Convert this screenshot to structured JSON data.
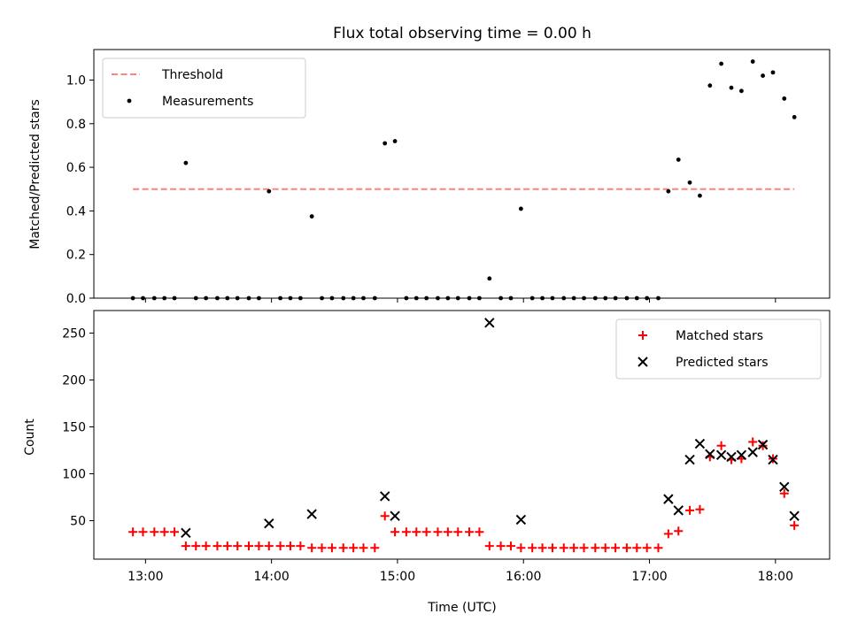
{
  "colors": {
    "threshold": "#ff8080",
    "measurement": "#000000",
    "matched": "#ff0000",
    "predicted": "#000000",
    "axes": "#000000"
  },
  "chart_data": [
    {
      "type": "scatter",
      "title": "Flux total observing time = 0.00 h",
      "xlabel": "",
      "ylabel": "Matched/Predicted stars",
      "xlim": [
        12.59,
        18.43
      ],
      "ylim": [
        0,
        1.14
      ],
      "yticks": [
        0.0,
        0.2,
        0.4,
        0.6,
        0.8,
        1.0
      ],
      "ytick_labels": [
        "0.0",
        "0.2",
        "0.4",
        "0.6",
        "0.8",
        "1.0"
      ],
      "xticks": [
        13,
        14,
        15,
        16,
        17,
        18
      ],
      "xtick_labels": [],
      "grid": false,
      "legend": {
        "position": "upper left",
        "entries": [
          "Threshold",
          "Measurements"
        ]
      },
      "series": [
        {
          "name": "Threshold",
          "style": "dashed-line",
          "x": [
            12.9,
            18.15
          ],
          "y": [
            0.5,
            0.5
          ]
        },
        {
          "name": "Measurements",
          "style": "dot",
          "points": [
            [
              12.9,
              0
            ],
            [
              12.98,
              0
            ],
            [
              13.07,
              0
            ],
            [
              13.15,
              0
            ],
            [
              13.23,
              0
            ],
            [
              13.32,
              0.62
            ],
            [
              13.4,
              0
            ],
            [
              13.48,
              0
            ],
            [
              13.57,
              0
            ],
            [
              13.65,
              0
            ],
            [
              13.73,
              0
            ],
            [
              13.82,
              0
            ],
            [
              13.9,
              0
            ],
            [
              13.98,
              0.49
            ],
            [
              14.07,
              0
            ],
            [
              14.15,
              0
            ],
            [
              14.23,
              0
            ],
            [
              14.32,
              0.375
            ],
            [
              14.4,
              0
            ],
            [
              14.48,
              0
            ],
            [
              14.57,
              0
            ],
            [
              14.65,
              0
            ],
            [
              14.73,
              0
            ],
            [
              14.82,
              0
            ],
            [
              14.9,
              0.71
            ],
            [
              14.98,
              0.72
            ],
            [
              15.07,
              0
            ],
            [
              15.15,
              0
            ],
            [
              15.23,
              0
            ],
            [
              15.32,
              0
            ],
            [
              15.4,
              0
            ],
            [
              15.48,
              0
            ],
            [
              15.57,
              0
            ],
            [
              15.65,
              0
            ],
            [
              15.73,
              0.09
            ],
            [
              15.82,
              0
            ],
            [
              15.9,
              0
            ],
            [
              15.98,
              0.41
            ],
            [
              16.07,
              0
            ],
            [
              16.15,
              0
            ],
            [
              16.23,
              0
            ],
            [
              16.32,
              0
            ],
            [
              16.4,
              0
            ],
            [
              16.48,
              0
            ],
            [
              16.57,
              0
            ],
            [
              16.65,
              0
            ],
            [
              16.73,
              0
            ],
            [
              16.82,
              0
            ],
            [
              16.9,
              0
            ],
            [
              16.98,
              0
            ],
            [
              17.07,
              0
            ],
            [
              17.15,
              0.49
            ],
            [
              17.23,
              0.635
            ],
            [
              17.32,
              0.53
            ],
            [
              17.4,
              0.47
            ],
            [
              17.48,
              0.975
            ],
            [
              17.57,
              1.075
            ],
            [
              17.65,
              0.965
            ],
            [
              17.73,
              0.95
            ],
            [
              17.82,
              1.085
            ],
            [
              17.9,
              1.02
            ],
            [
              17.98,
              1.035
            ],
            [
              18.07,
              0.915
            ],
            [
              18.15,
              0.83
            ]
          ]
        }
      ]
    },
    {
      "type": "scatter",
      "title": "",
      "xlabel": "Time (UTC)",
      "ylabel": "Count",
      "xlim": [
        12.59,
        18.43
      ],
      "ylim": [
        9,
        274
      ],
      "yticks": [
        50,
        100,
        150,
        200,
        250
      ],
      "ytick_labels": [
        "50",
        "100",
        "150",
        "200",
        "250"
      ],
      "xticks": [
        13,
        14,
        15,
        16,
        17,
        18
      ],
      "xtick_labels": [
        "13:00",
        "14:00",
        "15:00",
        "16:00",
        "17:00",
        "18:00"
      ],
      "grid": false,
      "legend": {
        "position": "upper right",
        "entries": [
          "Matched stars",
          "Predicted stars"
        ]
      },
      "series": [
        {
          "name": "Matched stars",
          "style": "plus",
          "points": [
            [
              12.9,
              38
            ],
            [
              12.98,
              38
            ],
            [
              13.07,
              38
            ],
            [
              13.15,
              38
            ],
            [
              13.23,
              38
            ],
            [
              13.32,
              23
            ],
            [
              13.4,
              23
            ],
            [
              13.48,
              23
            ],
            [
              13.57,
              23
            ],
            [
              13.65,
              23
            ],
            [
              13.73,
              23
            ],
            [
              13.82,
              23
            ],
            [
              13.9,
              23
            ],
            [
              13.98,
              23
            ],
            [
              14.07,
              23
            ],
            [
              14.15,
              23
            ],
            [
              14.23,
              23
            ],
            [
              14.32,
              21
            ],
            [
              14.4,
              21
            ],
            [
              14.48,
              21
            ],
            [
              14.57,
              21
            ],
            [
              14.65,
              21
            ],
            [
              14.73,
              21
            ],
            [
              14.82,
              21
            ],
            [
              14.9,
              55
            ],
            [
              14.98,
              38
            ],
            [
              15.07,
              38
            ],
            [
              15.15,
              38
            ],
            [
              15.23,
              38
            ],
            [
              15.32,
              38
            ],
            [
              15.4,
              38
            ],
            [
              15.48,
              38
            ],
            [
              15.57,
              38
            ],
            [
              15.65,
              38
            ],
            [
              15.73,
              23
            ],
            [
              15.82,
              23
            ],
            [
              15.9,
              23
            ],
            [
              15.98,
              21
            ],
            [
              16.07,
              21
            ],
            [
              16.15,
              21
            ],
            [
              16.23,
              21
            ],
            [
              16.32,
              21
            ],
            [
              16.4,
              21
            ],
            [
              16.48,
              21
            ],
            [
              16.57,
              21
            ],
            [
              16.65,
              21
            ],
            [
              16.73,
              21
            ],
            [
              16.82,
              21
            ],
            [
              16.9,
              21
            ],
            [
              16.98,
              21
            ],
            [
              17.07,
              21
            ],
            [
              17.15,
              36
            ],
            [
              17.23,
              39
            ],
            [
              17.32,
              61
            ],
            [
              17.4,
              62
            ],
            [
              17.48,
              118
            ],
            [
              17.57,
              130
            ],
            [
              17.65,
              115
            ],
            [
              17.73,
              116
            ],
            [
              17.82,
              134
            ],
            [
              17.9,
              130
            ],
            [
              17.98,
              116
            ],
            [
              18.07,
              79
            ],
            [
              18.15,
              45
            ]
          ]
        },
        {
          "name": "Predicted stars",
          "style": "x",
          "points": [
            [
              13.32,
              37
            ],
            [
              13.98,
              47
            ],
            [
              14.32,
              57
            ],
            [
              14.9,
              76
            ],
            [
              14.98,
              55
            ],
            [
              15.73,
              261
            ],
            [
              15.98,
              51
            ],
            [
              17.15,
              73
            ],
            [
              17.23,
              61
            ],
            [
              17.32,
              115
            ],
            [
              17.4,
              132
            ],
            [
              17.48,
              121
            ],
            [
              17.57,
              120
            ],
            [
              17.65,
              118
            ],
            [
              17.73,
              120
            ],
            [
              17.82,
              123
            ],
            [
              17.9,
              131
            ],
            [
              17.98,
              115
            ],
            [
              18.07,
              86
            ],
            [
              18.15,
              55
            ]
          ]
        }
      ]
    }
  ]
}
